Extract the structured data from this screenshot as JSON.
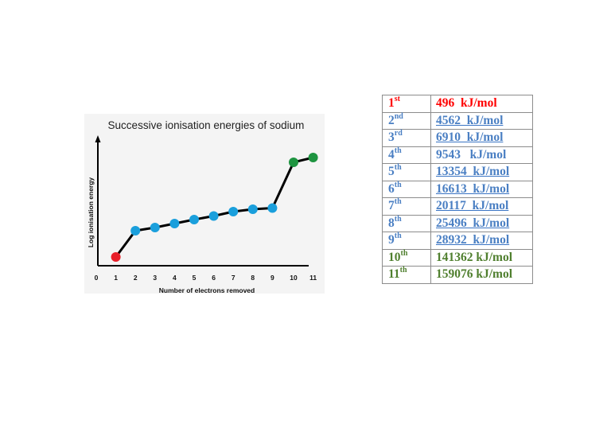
{
  "colors": {
    "red": "#e8202a",
    "blue": "#1a9fdc",
    "green": "#1e9440",
    "line": "#000000",
    "table_red": "#ff0000",
    "table_blue": "#4a7fc3",
    "table_green": "#4f7f2e"
  },
  "chart_data": {
    "type": "line",
    "title": "Successive ionisation energies of sodium",
    "xlabel": "Number of electrons removed",
    "ylabel": "Log ionisation energy",
    "x_ticks": [
      "0",
      "1",
      "2",
      "3",
      "4",
      "5",
      "6",
      "7",
      "8",
      "9",
      "10",
      "11"
    ],
    "xlim": [
      0,
      11
    ],
    "y_scale": "log",
    "y_ticks_shown": false,
    "grid": false,
    "legend": "none",
    "series": [
      {
        "x": [
          1,
          2,
          3,
          4,
          5,
          6,
          7,
          8,
          9,
          10,
          11
        ],
        "y": [
          496,
          4562,
          6910,
          9543,
          13354,
          16613,
          20117,
          25496,
          28932,
          141362,
          159076
        ],
        "point_colors": [
          "red",
          "blue",
          "blue",
          "blue",
          "blue",
          "blue",
          "blue",
          "blue",
          "blue",
          "green",
          "green"
        ]
      }
    ]
  },
  "table": {
    "rows": [
      {
        "num": "1",
        "suffix": "st",
        "value": "496  kJ/mol",
        "color": "red",
        "underline": false
      },
      {
        "num": "2",
        "suffix": "nd",
        "value": "4562  kJ/mol",
        "color": "blue",
        "underline": true
      },
      {
        "num": "3",
        "suffix": "rd",
        "value": "6910  kJ/mol",
        "color": "blue",
        "underline": true
      },
      {
        "num": "4",
        "suffix": "th",
        "value": "9543   kJ/mol",
        "color": "blue",
        "underline": false
      },
      {
        "num": "5",
        "suffix": "th",
        "value": "13354  kJ/mol",
        "color": "blue",
        "underline": true
      },
      {
        "num": "6",
        "suffix": "th",
        "value": "16613  kJ/mol",
        "color": "blue",
        "underline": true
      },
      {
        "num": "7",
        "suffix": "th",
        "value": "20117  kJ/mol",
        "color": "blue",
        "underline": true
      },
      {
        "num": "8",
        "suffix": "th",
        "value": "25496  kJ/mol",
        "color": "blue",
        "underline": true
      },
      {
        "num": "9",
        "suffix": "th",
        "value": "28932  kJ/mol",
        "color": "blue",
        "underline": true
      },
      {
        "num": "10",
        "suffix": "th",
        "value": "141362 kJ/mol",
        "color": "green",
        "underline": false
      },
      {
        "num": "11",
        "suffix": "th",
        "value": "159076 kJ/mol",
        "color": "green",
        "underline": false
      }
    ]
  }
}
